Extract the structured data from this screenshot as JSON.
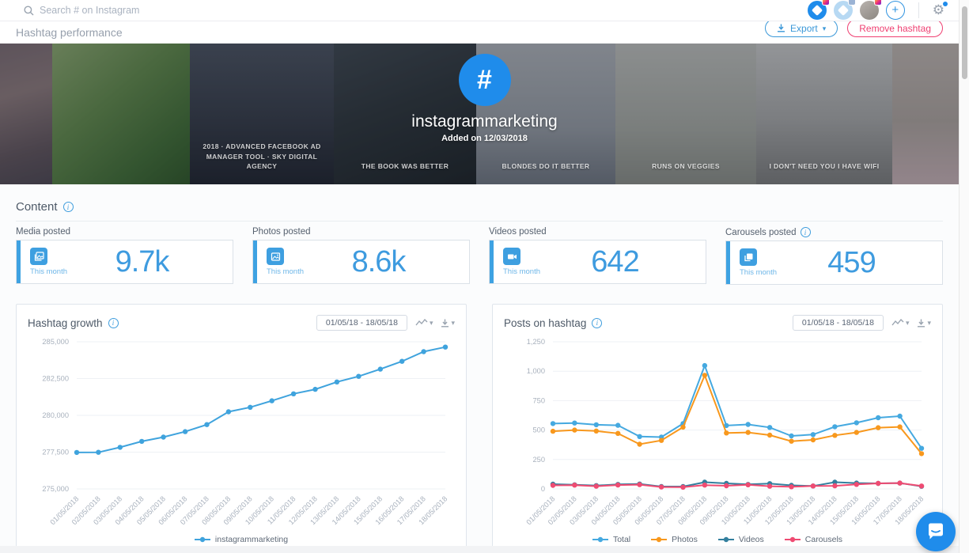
{
  "topbar": {
    "search_placeholder": "Search # on Instagram"
  },
  "header": {
    "title": "Hashtag performance",
    "export_label": "Export",
    "remove_label": "Remove hashtag"
  },
  "banner": {
    "hashtag_symbol": "#",
    "hashtag": "instagrammarketing",
    "added_on": "Added on 12/03/2018",
    "tiles": [
      {
        "caption": ""
      },
      {
        "caption": ""
      },
      {
        "caption": "2018 · ADVANCED FACEBOOK AD MANAGER TOOL · SKY DIGITAL AGENCY"
      },
      {
        "caption": "THE BOOK WAS BETTER"
      },
      {
        "caption": "BLONDES DO IT BETTER"
      },
      {
        "caption": "RUNS ON VEGGIES"
      },
      {
        "caption": "I DON'T NEED YOU I HAVE WIFI"
      },
      {
        "caption": ""
      }
    ]
  },
  "content": {
    "section_title": "Content",
    "cards": [
      {
        "label": "Media posted",
        "period": "This month",
        "value": "9.7k"
      },
      {
        "label": "Photos posted",
        "period": "This month",
        "value": "8.6k"
      },
      {
        "label": "Videos posted",
        "period": "This month",
        "value": "642"
      },
      {
        "label": "Carousels posted",
        "period": "This month",
        "value": "459"
      }
    ]
  },
  "colors": {
    "accent_blue": "#1f8ceb",
    "card_blue": "#3e9fe0",
    "growth_line": "#3fa3dd",
    "total": "#45a9e0",
    "photos": "#f8981d",
    "videos": "#337f9e",
    "carousels": "#ef4b72",
    "remove_red": "#ef3f71"
  },
  "chart_data": [
    {
      "type": "line",
      "title": "Hashtag growth",
      "date_range": "01/05/18 - 18/05/18",
      "x": [
        "01/05/2018",
        "02/05/2018",
        "03/05/2018",
        "04/05/2018",
        "05/05/2018",
        "06/05/2018",
        "07/05/2018",
        "08/05/2018",
        "09/05/2018",
        "10/05/2018",
        "11/05/2018",
        "12/05/2018",
        "13/05/2018",
        "14/05/2018",
        "15/05/2018",
        "16/05/2018",
        "17/05/2018",
        "18/05/2018"
      ],
      "series": [
        {
          "name": "instagrammarketing",
          "color": "#3fa3dd",
          "values": [
            277480,
            277490,
            277830,
            278230,
            278520,
            278890,
            279370,
            280240,
            280550,
            280990,
            281460,
            281770,
            282270,
            282650,
            283140,
            283670,
            284330,
            284640
          ]
        }
      ],
      "ylim": [
        275000,
        285000
      ],
      "yticks": [
        275000,
        277500,
        280000,
        282500,
        285000
      ],
      "grid": true,
      "legend_position": "bottom"
    },
    {
      "type": "line",
      "title": "Posts on hashtag",
      "date_range": "01/05/18 - 18/05/18",
      "x": [
        "01/05/2018",
        "02/05/2018",
        "03/05/2018",
        "04/05/2018",
        "05/05/2018",
        "06/05/2018",
        "07/05/2018",
        "08/05/2018",
        "09/05/2018",
        "10/05/2018",
        "11/05/2018",
        "12/05/2018",
        "13/05/2018",
        "14/05/2018",
        "15/05/2018",
        "16/05/2018",
        "17/05/2018",
        "18/05/2018"
      ],
      "series": [
        {
          "name": "Total",
          "color": "#45a9e0",
          "values": [
            555,
            560,
            545,
            540,
            445,
            440,
            555,
            1048,
            538,
            548,
            522,
            450,
            462,
            528,
            562,
            605,
            618,
            345
          ]
        },
        {
          "name": "Photos",
          "color": "#f8981d",
          "values": [
            490,
            500,
            492,
            472,
            380,
            412,
            525,
            965,
            475,
            480,
            457,
            405,
            417,
            455,
            480,
            520,
            527,
            300
          ]
        },
        {
          "name": "Videos",
          "color": "#337f9e",
          "values": [
            40,
            35,
            28,
            38,
            42,
            20,
            20,
            57,
            47,
            38,
            45,
            30,
            25,
            57,
            50,
            47,
            50,
            22
          ]
        },
        {
          "name": "Carousels",
          "color": "#ef4b72",
          "values": [
            30,
            32,
            23,
            33,
            36,
            16,
            15,
            32,
            27,
            35,
            23,
            18,
            25,
            26,
            38,
            47,
            50,
            25
          ]
        }
      ],
      "ylim": [
        0,
        1250
      ],
      "yticks": [
        0,
        250,
        500,
        750,
        1000,
        1250
      ],
      "grid": true,
      "legend_position": "bottom"
    }
  ]
}
